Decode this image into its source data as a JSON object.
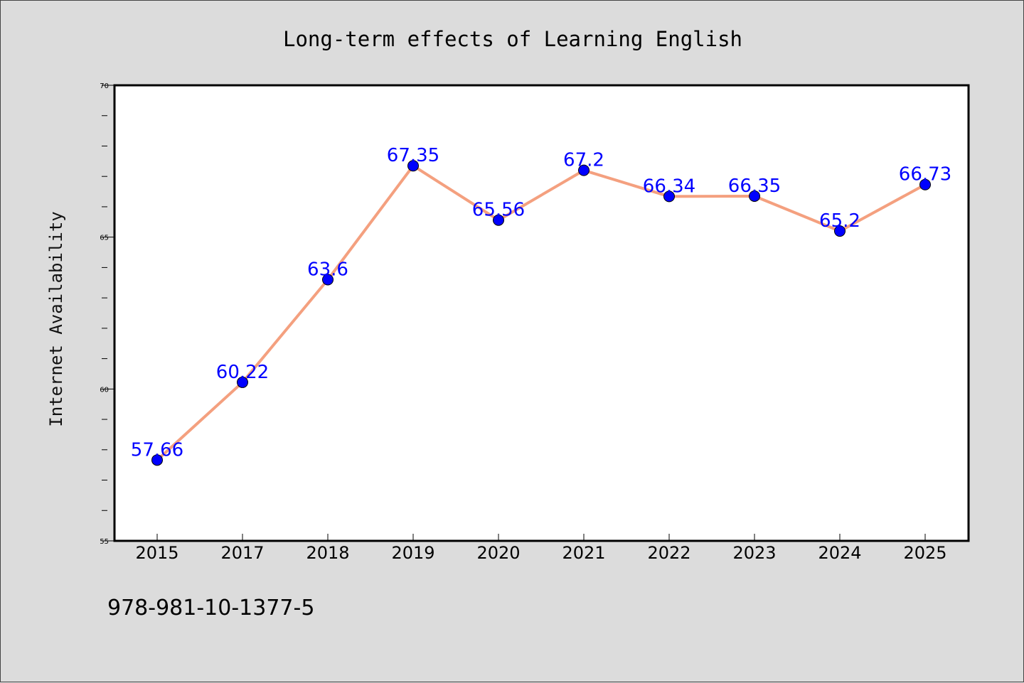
{
  "chart_data": {
    "type": "line",
    "title": "Long-term effects of Learning English",
    "xlabel": "",
    "ylabel": "Internet Availability",
    "categories": [
      "2015",
      "2017",
      "2018",
      "2019",
      "2020",
      "2021",
      "2022",
      "2023",
      "2024",
      "2025"
    ],
    "series": [
      {
        "values": [
          57.66,
          60.22,
          63.6,
          67.35,
          65.56,
          67.2,
          66.34,
          66.35,
          65.2,
          66.73
        ],
        "labels": [
          "57.66",
          "60.22",
          "63.6",
          "67.35",
          "65.56",
          "67.2",
          "66.34",
          "66.35",
          "65.2",
          "66.73"
        ],
        "line_color": "#f4a07f",
        "marker_color": "#0000ff"
      }
    ],
    "ylim": [
      55,
      70
    ],
    "yticks": [
      "55",
      "60",
      "65",
      "70"
    ],
    "grid": false,
    "legend": "none",
    "label_color": "#0000ff",
    "background": "#dcdcdc",
    "plot_background": "#ffffff"
  },
  "footer_note": "978-981-10-1377-5"
}
